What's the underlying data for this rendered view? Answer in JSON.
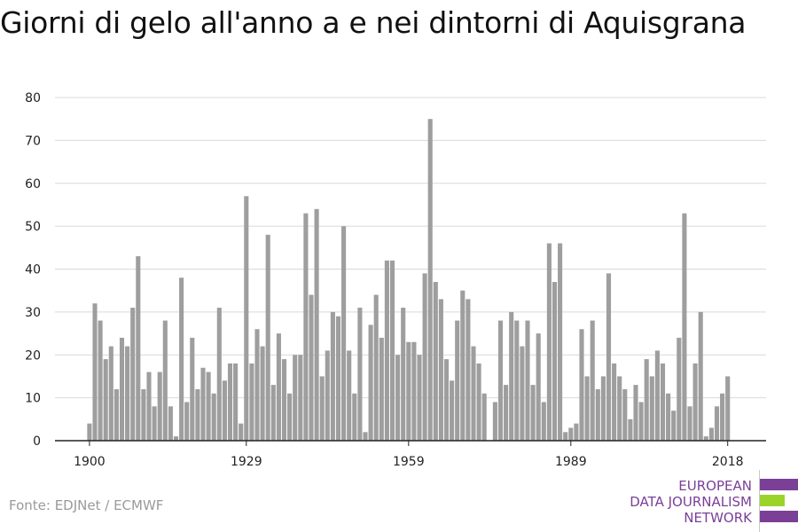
{
  "colors": {
    "bar": "#9e9e9e",
    "grid": "#d9d9d9",
    "axis": "#222222",
    "logo_purple": "#7b3f98",
    "logo_green": "#9bd32b"
  },
  "source": "Fonte: EDJNet / ECMWF",
  "logo": {
    "lines": [
      "EUROPEAN",
      "DATA JOURNALISM",
      "NETWORK"
    ]
  },
  "chart_data": {
    "type": "bar",
    "title": "Giorni di gelo all'anno a e nei dintorni di Aquisgrana",
    "xlabel": "",
    "ylabel": "",
    "ylim": [
      0,
      80
    ],
    "yticks": [
      0,
      10,
      20,
      30,
      40,
      50,
      60,
      70,
      80
    ],
    "xticks": [
      1900,
      1929,
      1959,
      1989,
      2018
    ],
    "grid": true,
    "legend": "none",
    "x": [
      1900,
      1901,
      1902,
      1903,
      1904,
      1905,
      1906,
      1907,
      1908,
      1909,
      1910,
      1911,
      1912,
      1913,
      1914,
      1915,
      1916,
      1917,
      1918,
      1919,
      1920,
      1921,
      1922,
      1923,
      1924,
      1925,
      1926,
      1927,
      1928,
      1929,
      1930,
      1931,
      1932,
      1933,
      1934,
      1935,
      1936,
      1937,
      1938,
      1939,
      1940,
      1941,
      1942,
      1943,
      1944,
      1945,
      1946,
      1947,
      1948,
      1949,
      1950,
      1951,
      1952,
      1953,
      1954,
      1955,
      1956,
      1957,
      1958,
      1959,
      1960,
      1961,
      1962,
      1963,
      1964,
      1965,
      1966,
      1967,
      1968,
      1969,
      1970,
      1971,
      1972,
      1973,
      1974,
      1975,
      1976,
      1977,
      1978,
      1979,
      1980,
      1981,
      1982,
      1983,
      1984,
      1985,
      1986,
      1987,
      1988,
      1989,
      1990,
      1991,
      1992,
      1993,
      1994,
      1995,
      1996,
      1997,
      1998,
      1999,
      2000,
      2001,
      2002,
      2003,
      2004,
      2005,
      2006,
      2007,
      2008,
      2009,
      2010,
      2011,
      2012,
      2013,
      2014,
      2015,
      2016,
      2017,
      2018
    ],
    "values": [
      4,
      32,
      28,
      19,
      22,
      12,
      24,
      22,
      31,
      43,
      12,
      16,
      8,
      16,
      28,
      8,
      1,
      38,
      9,
      24,
      12,
      17,
      16,
      11,
      31,
      14,
      18,
      18,
      4,
      57,
      18,
      26,
      22,
      48,
      13,
      25,
      19,
      11,
      20,
      20,
      53,
      34,
      54,
      15,
      21,
      30,
      29,
      50,
      21,
      11,
      31,
      2,
      27,
      34,
      24,
      42,
      42,
      20,
      31,
      23,
      23,
      20,
      39,
      75,
      37,
      33,
      19,
      14,
      28,
      35,
      33,
      22,
      18,
      11,
      0,
      9,
      28,
      13,
      30,
      28,
      22,
      28,
      13,
      25,
      9,
      46,
      37,
      46,
      2,
      3,
      4,
      26,
      15,
      28,
      12,
      15,
      39,
      18,
      15,
      12,
      5,
      13,
      9,
      19,
      15,
      21,
      18,
      11,
      7,
      24,
      53,
      8,
      18,
      30,
      1,
      3,
      8,
      11,
      15
    ]
  }
}
